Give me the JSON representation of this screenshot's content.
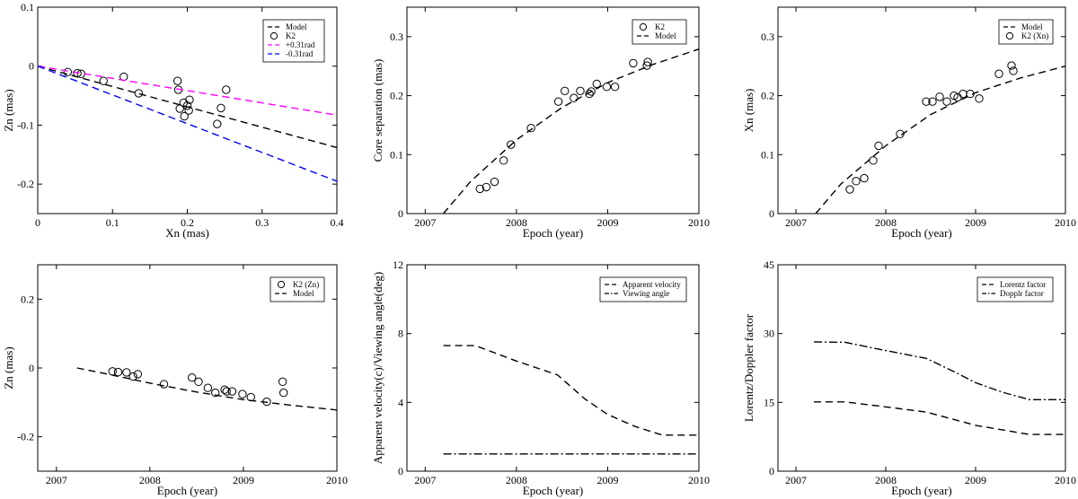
{
  "chart_data": [
    {
      "id": "p1",
      "type": "scatter",
      "title": "",
      "xlabel": "Xn (mas)",
      "ylabel": "Zn (mas)",
      "xlim": [
        0,
        0.4
      ],
      "ylim": [
        -0.25,
        0.1
      ],
      "xticks": [
        {
          "v": 0,
          "label": "0"
        },
        {
          "v": 0.1,
          "label": "0.1"
        },
        {
          "v": 0.2,
          "label": "0.2"
        },
        {
          "v": 0.3,
          "label": "0.3"
        },
        {
          "v": 0.4,
          "label": "0.4"
        }
      ],
      "yticks": [
        {
          "v": -0.2,
          "label": "-0.2"
        },
        {
          "v": -0.1,
          "label": "-0.1"
        },
        {
          "v": 0,
          "label": "0"
        },
        {
          "v": 0.1,
          "label": "0.1"
        }
      ],
      "legend_position": "top-right",
      "series": [
        {
          "name": "Model",
          "kind": "line",
          "style": "dashed",
          "color": "#000000",
          "x": [
            0,
            0.4
          ],
          "y": [
            0,
            -0.138
          ]
        },
        {
          "name": "K2",
          "kind": "points",
          "color": "#000000",
          "x": [
            0.04,
            0.053,
            0.058,
            0.088,
            0.115,
            0.135,
            0.187,
            0.188,
            0.19,
            0.195,
            0.196,
            0.2,
            0.202,
            0.203,
            0.24,
            0.245,
            0.252
          ],
          "y": [
            -0.01,
            -0.012,
            -0.013,
            -0.025,
            -0.018,
            -0.046,
            -0.025,
            -0.04,
            -0.072,
            -0.062,
            -0.085,
            -0.067,
            -0.075,
            -0.057,
            -0.098,
            -0.071,
            -0.04
          ]
        },
        {
          "name": "+0.31rad",
          "kind": "line",
          "style": "dashed",
          "color": "#ff00ff",
          "x": [
            0,
            0.4
          ],
          "y": [
            0,
            -0.083
          ]
        },
        {
          "name": "-0.31rad",
          "kind": "line",
          "style": "dashed",
          "color": "#0000ff",
          "x": [
            0,
            0.4
          ],
          "y": [
            0,
            -0.195
          ]
        }
      ]
    },
    {
      "id": "p2",
      "type": "scatter",
      "title": "",
      "xlabel": "Epoch (year)",
      "ylabel": "Core separation (mas)",
      "xlim": [
        2006.8,
        2010
      ],
      "ylim": [
        0,
        0.35
      ],
      "xticks": [
        {
          "v": 2007,
          "label": "2007"
        },
        {
          "v": 2008,
          "label": "2008"
        },
        {
          "v": 2009,
          "label": "2009"
        },
        {
          "v": 2010,
          "label": "2010"
        }
      ],
      "yticks": [
        {
          "v": 0,
          "label": "0"
        },
        {
          "v": 0.1,
          "label": "0.1"
        },
        {
          "v": 0.2,
          "label": "0.2"
        },
        {
          "v": 0.3,
          "label": "0.3"
        }
      ],
      "legend_position": "top-right",
      "series": [
        {
          "name": "K2",
          "kind": "points",
          "color": "#000000",
          "x": [
            2007.6,
            2007.67,
            2007.76,
            2007.86,
            2007.94,
            2008.16,
            2008.46,
            2008.53,
            2008.63,
            2008.7,
            2008.8,
            2008.82,
            2008.88,
            2008.99,
            2009.08,
            2009.28,
            2009.43,
            2009.44
          ],
          "y": [
            0.042,
            0.045,
            0.054,
            0.09,
            0.117,
            0.145,
            0.19,
            0.208,
            0.196,
            0.208,
            0.203,
            0.207,
            0.22,
            0.215,
            0.215,
            0.255,
            0.251,
            0.257
          ]
        },
        {
          "name": "Model",
          "kind": "line",
          "style": "dashed",
          "color": "#000000",
          "x": [
            2007.2,
            2007.5,
            2008.0,
            2008.5,
            2009.0,
            2009.5,
            2010.0
          ],
          "y": [
            0.0,
            0.055,
            0.125,
            0.18,
            0.222,
            0.253,
            0.279
          ]
        }
      ]
    },
    {
      "id": "p3",
      "type": "scatter",
      "title": "",
      "xlabel": "Epoch (year)",
      "ylabel": "Xn (mas)",
      "xlim": [
        2006.8,
        2010
      ],
      "ylim": [
        0,
        0.35
      ],
      "xticks": [
        {
          "v": 2007,
          "label": "2007"
        },
        {
          "v": 2008,
          "label": "2008"
        },
        {
          "v": 2009,
          "label": "2009"
        },
        {
          "v": 2010,
          "label": "2010"
        }
      ],
      "yticks": [
        {
          "v": 0,
          "label": "0"
        },
        {
          "v": 0.1,
          "label": "0.1"
        },
        {
          "v": 0.2,
          "label": "0.2"
        },
        {
          "v": 0.3,
          "label": "0.3"
        }
      ],
      "legend_position": "top-right",
      "series": [
        {
          "name": "Model",
          "kind": "line",
          "style": "dashed",
          "color": "#000000",
          "x": [
            2007.22,
            2007.5,
            2008.0,
            2008.5,
            2009.0,
            2009.5,
            2010.0
          ],
          "y": [
            0.0,
            0.05,
            0.115,
            0.168,
            0.205,
            0.23,
            0.25
          ]
        },
        {
          "name": "K2 (Xn)",
          "kind": "points",
          "color": "#000000",
          "x": [
            2007.6,
            2007.67,
            2007.76,
            2007.86,
            2007.92,
            2008.16,
            2008.45,
            2008.52,
            2008.6,
            2008.68,
            2008.76,
            2008.8,
            2008.86,
            2008.94,
            2009.04,
            2009.26,
            2009.4,
            2009.42
          ],
          "y": [
            0.041,
            0.055,
            0.06,
            0.09,
            0.115,
            0.135,
            0.19,
            0.19,
            0.198,
            0.19,
            0.2,
            0.197,
            0.203,
            0.203,
            0.195,
            0.237,
            0.251,
            0.242
          ]
        }
      ]
    },
    {
      "id": "p4",
      "type": "scatter",
      "title": "",
      "xlabel": "Epoch (year)",
      "ylabel": "Zn (mas)",
      "xlim": [
        2006.8,
        2010
      ],
      "ylim": [
        -0.3,
        0.3
      ],
      "xticks": [
        {
          "v": 2007,
          "label": "2007"
        },
        {
          "v": 2008,
          "label": "2008"
        },
        {
          "v": 2009,
          "label": "2009"
        },
        {
          "v": 2010,
          "label": "2010"
        }
      ],
      "yticks": [
        {
          "v": -0.2,
          "label": "-0.2"
        },
        {
          "v": 0,
          "label": "0"
        },
        {
          "v": 0.2,
          "label": "0.2"
        }
      ],
      "legend_position": "top-right",
      "series": [
        {
          "name": "K2 (Zn)",
          "kind": "points",
          "color": "#000000",
          "x": [
            2007.6,
            2007.66,
            2007.75,
            2007.82,
            2007.87,
            2008.15,
            2008.45,
            2008.52,
            2008.62,
            2008.7,
            2008.8,
            2008.82,
            2008.88,
            2008.99,
            2009.08,
            2009.25,
            2009.42,
            2009.43
          ],
          "y": [
            -0.01,
            -0.012,
            -0.013,
            -0.025,
            -0.018,
            -0.047,
            -0.028,
            -0.04,
            -0.058,
            -0.072,
            -0.063,
            -0.068,
            -0.068,
            -0.076,
            -0.085,
            -0.098,
            -0.04,
            -0.072
          ]
        },
        {
          "name": "Model",
          "kind": "line",
          "style": "dashed",
          "color": "#000000",
          "x": [
            2007.22,
            2007.5,
            2008.0,
            2008.5,
            2009.0,
            2009.5,
            2010.0
          ],
          "y": [
            0.0,
            -0.015,
            -0.044,
            -0.07,
            -0.092,
            -0.108,
            -0.122
          ]
        }
      ]
    },
    {
      "id": "p5",
      "type": "line",
      "title": "",
      "xlabel": "Epoch (year)",
      "ylabel": "Apparent velocity(c)/Viewing angle(deg)",
      "xlim": [
        2006.8,
        2010
      ],
      "ylim": [
        0,
        12
      ],
      "xticks": [
        {
          "v": 2007,
          "label": "2007"
        },
        {
          "v": 2008,
          "label": "2008"
        },
        {
          "v": 2009,
          "label": "2009"
        },
        {
          "v": 2010,
          "label": "2010"
        }
      ],
      "yticks": [
        {
          "v": 0,
          "label": "0"
        },
        {
          "v": 4,
          "label": "4"
        },
        {
          "v": 8,
          "label": "8"
        },
        {
          "v": 12,
          "label": "12"
        }
      ],
      "legend_position": "top-right",
      "series": [
        {
          "name": "Apparent velocity",
          "kind": "line",
          "style": "dashed",
          "color": "#000000",
          "x": [
            2007.2,
            2007.55,
            2008.0,
            2008.45,
            2008.75,
            2009.0,
            2009.3,
            2009.6,
            2010.0
          ],
          "y": [
            7.3,
            7.3,
            6.4,
            5.6,
            4.2,
            3.3,
            2.6,
            2.1,
            2.1
          ]
        },
        {
          "name": "Viewing angle",
          "kind": "line",
          "style": "dashdot",
          "color": "#000000",
          "x": [
            2007.2,
            2010.0
          ],
          "y": [
            1.0,
            1.0
          ]
        }
      ]
    },
    {
      "id": "p6",
      "type": "line",
      "title": "",
      "xlabel": "Epoch (year)",
      "ylabel": "Lorentz/Doppler factor",
      "xlim": [
        2006.8,
        2010
      ],
      "ylim": [
        0,
        45
      ],
      "xticks": [
        {
          "v": 2007,
          "label": "2007"
        },
        {
          "v": 2008,
          "label": "2008"
        },
        {
          "v": 2009,
          "label": "2009"
        },
        {
          "v": 2010,
          "label": "2010"
        }
      ],
      "yticks": [
        {
          "v": 0,
          "label": "0"
        },
        {
          "v": 15,
          "label": "15"
        },
        {
          "v": 30,
          "label": "30"
        },
        {
          "v": 45,
          "label": "45"
        }
      ],
      "legend_position": "top-right",
      "series": [
        {
          "name": "Lorentz factor",
          "kind": "line",
          "style": "dashed",
          "color": "#000000",
          "x": [
            2007.2,
            2007.55,
            2008.0,
            2008.45,
            2009.0,
            2009.6,
            2010.0
          ],
          "y": [
            15.1,
            15.1,
            14.0,
            12.9,
            10.0,
            8.0,
            8.0
          ]
        },
        {
          "name": "Dopplr factor",
          "kind": "line",
          "style": "dashdot",
          "color": "#000000",
          "x": [
            2007.2,
            2007.55,
            2008.0,
            2008.45,
            2008.75,
            2009.0,
            2009.3,
            2009.6,
            2010.0
          ],
          "y": [
            28.2,
            28.1,
            26.3,
            24.6,
            21.8,
            19.3,
            17.2,
            15.6,
            15.6
          ]
        }
      ]
    }
  ]
}
